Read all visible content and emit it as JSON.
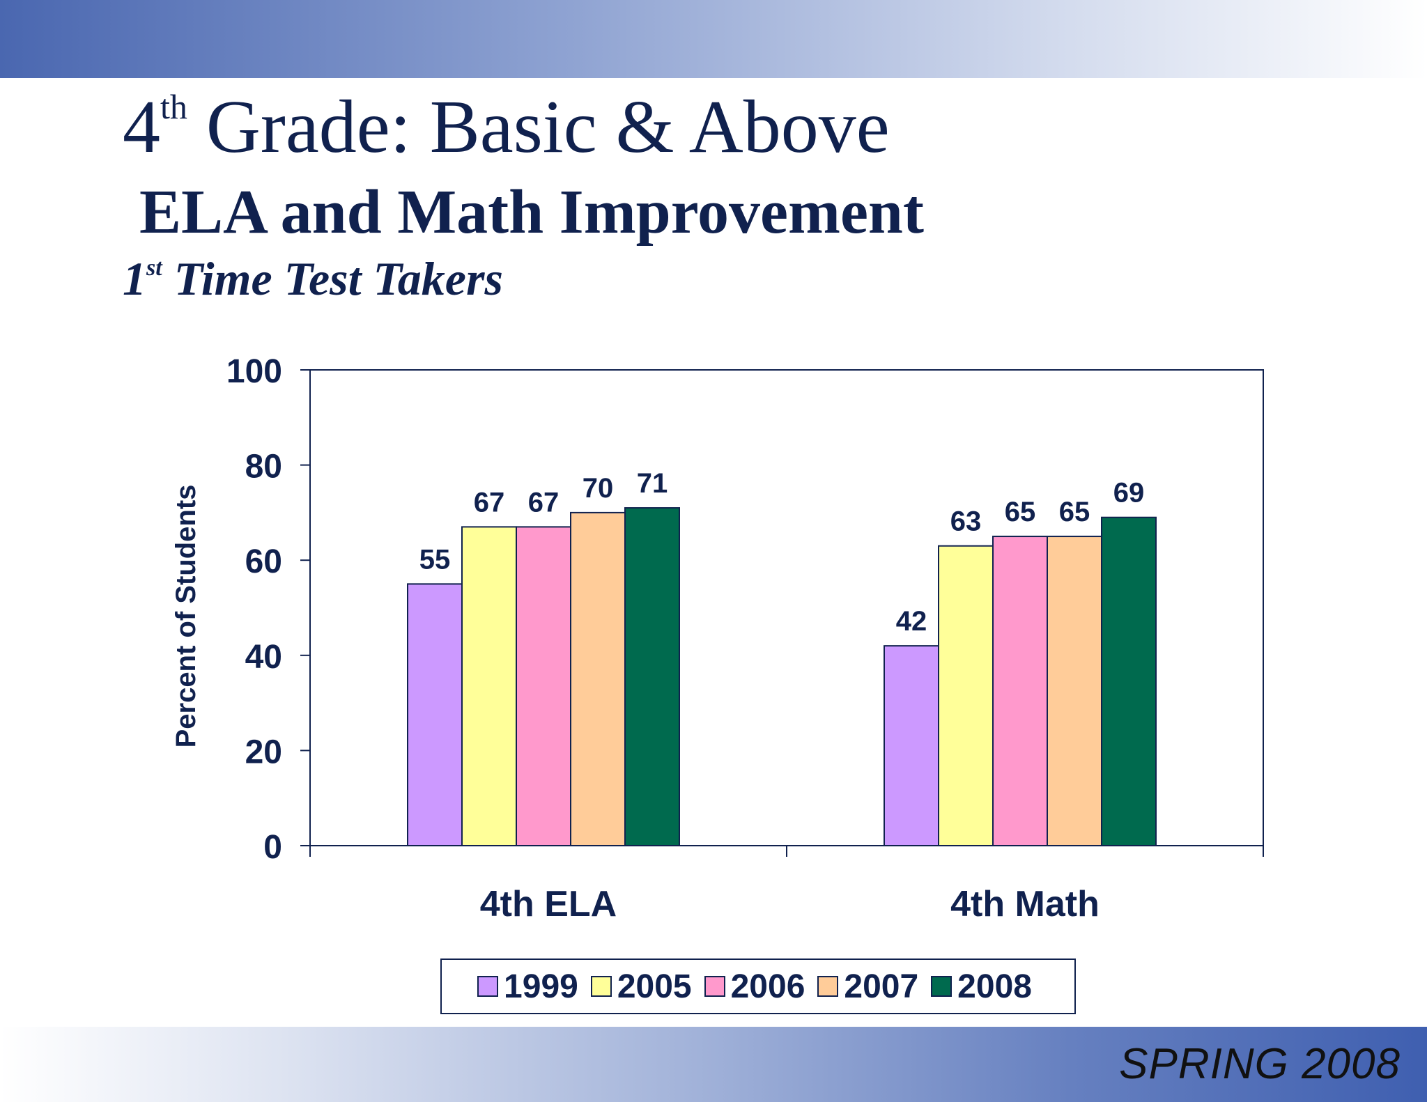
{
  "slide": {
    "title_main": "4",
    "title_sup": "th",
    "title_rest": " Grade: Basic & Above",
    "subtitle": "ELA and Math Improvement",
    "subsubtitle_num": "1",
    "subsubtitle_sup": "st",
    "subsubtitle_rest": " Time Test Takers",
    "footer": "SPRING 2008"
  },
  "chart_data": {
    "type": "bar",
    "ylabel": "Percent of Students",
    "ylim": [
      0,
      100
    ],
    "yticks": [
      "0",
      "20",
      "40",
      "60",
      "80",
      "100"
    ],
    "categories": [
      "4th ELA",
      "4th Math"
    ],
    "series": [
      {
        "name": "1999",
        "values": [
          55,
          42
        ],
        "color": "#cc99ff"
      },
      {
        "name": "2005",
        "values": [
          67,
          63
        ],
        "color": "#ffff99"
      },
      {
        "name": "2006",
        "values": [
          67,
          65
        ],
        "color": "#ff99cc"
      },
      {
        "name": "2007",
        "values": [
          70,
          65
        ],
        "color": "#ffcc99"
      },
      {
        "name": "2008",
        "values": [
          71,
          69
        ],
        "color": "#006a4e"
      }
    ],
    "grid": false,
    "legend_position": "bottom",
    "axis_color": "#10214e"
  }
}
